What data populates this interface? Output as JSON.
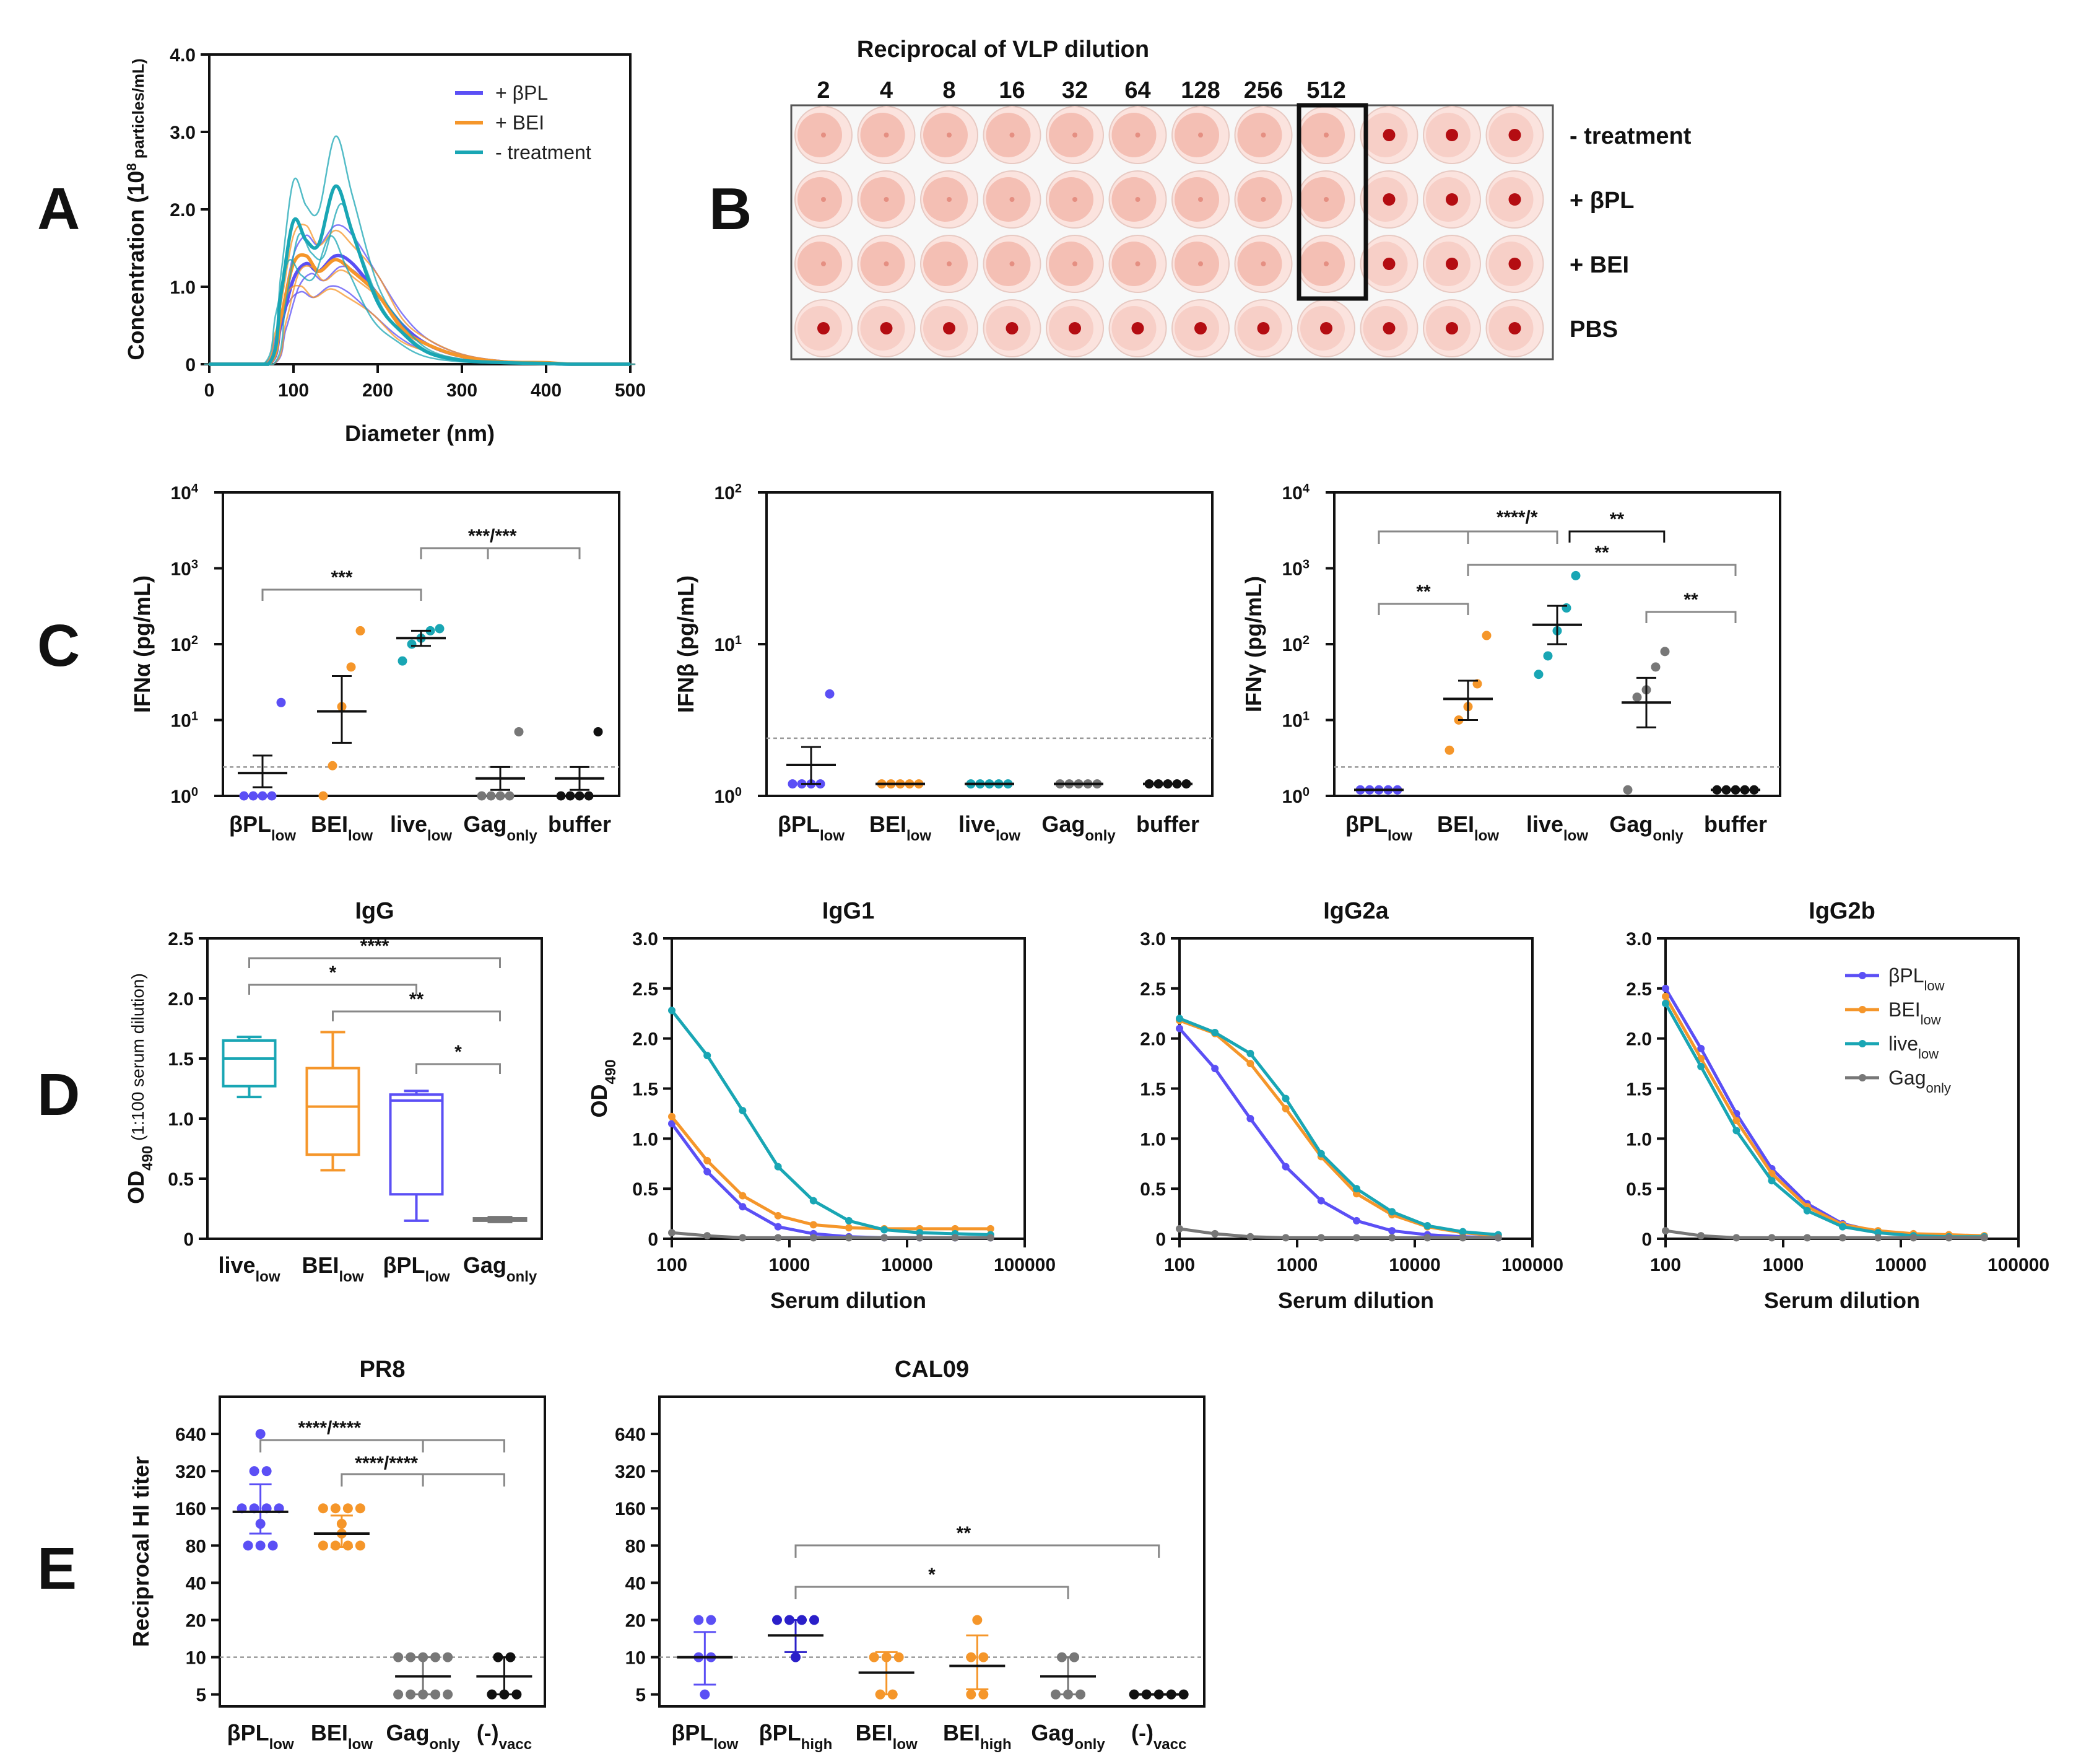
{
  "colors": {
    "bpl": "#5b4ff5",
    "bei": "#f5962a",
    "live": "#19a6b4",
    "gag": "#777777",
    "black": "#111111",
    "teal_text": "#1aa3b3",
    "blue_text": "#4f8ef7",
    "orange_text": "#f5a03a"
  },
  "panels": {
    "A": "A",
    "B": "B",
    "C": "C",
    "D": "D",
    "E": "E"
  },
  "panelA": {
    "ylabel": "Concentration (10",
    "ylabel_sup": "8",
    "ylabel_units": " particles/mL)",
    "xlabel": "Diameter (nm)",
    "xticks": [
      "0",
      "100",
      "200",
      "300",
      "400",
      "500"
    ],
    "yticks": [
      "0",
      "1.0",
      "2.0",
      "3.0",
      "4.0"
    ],
    "legend": [
      "+ βPL",
      "+ BEI",
      "- treatment"
    ]
  },
  "panelB": {
    "title": "Reciprocal of VLP dilution",
    "dilutions": [
      "2",
      "4",
      "8",
      "16",
      "32",
      "64",
      "128",
      "256",
      "512"
    ],
    "row_labels": [
      "- treatment",
      "+ βPL",
      "+ BEI",
      "PBS"
    ],
    "columns": 12,
    "hemagglutination_endpoint_col": 9
  },
  "panelC": {
    "ylabels": [
      "IFNα (pg/mL)",
      "IFNβ (pg/mL)",
      "IFNγ (pg/mL)"
    ],
    "cats_main": [
      "βPL",
      "BEI",
      "live",
      "Gag",
      "buffer"
    ],
    "cats_sub": [
      "low",
      "low",
      "low",
      "only",
      ""
    ],
    "c1_ticks": [
      "10",
      "10",
      "10",
      "10",
      "10"
    ],
    "c1_exp": [
      "0",
      "1",
      "2",
      "3",
      "4"
    ],
    "c2_ticks": [
      "10",
      "10",
      "10"
    ],
    "c2_exp": [
      "0",
      "1",
      "2"
    ],
    "sig_c1": [
      "***",
      "***/***"
    ],
    "sig_c3": [
      "****/*",
      "**",
      "**",
      "**",
      "**"
    ]
  },
  "panelD": {
    "titles": [
      "IgG",
      "IgG1",
      "IgG2a",
      "IgG2b"
    ],
    "ylabel_main": "OD",
    "ylabel_sub": "490",
    "ylabel_tail": " (1:100 serum dilution)",
    "box_cats_main": [
      "live",
      "BEI",
      "βPL",
      "Gag"
    ],
    "box_cats_sub": [
      "low",
      "low",
      "low",
      "only"
    ],
    "box_yticks": [
      "0",
      "0.5",
      "1.0",
      "1.5",
      "2.0",
      "2.5"
    ],
    "line_yticks": [
      "0",
      "0.5",
      "1.0",
      "1.5",
      "2.0",
      "2.5",
      "3.0"
    ],
    "line_xticks": [
      "100",
      "1000",
      "10000",
      "100000"
    ],
    "xlabel": "Serum dilution",
    "sig": [
      "****",
      "*",
      "**",
      "*"
    ],
    "legend_main": [
      "βPL",
      "BEI",
      "live",
      "Gag"
    ],
    "legend_sub": [
      "low",
      "low",
      "low",
      "only"
    ]
  },
  "panelE": {
    "titles": [
      "PR8",
      "CAL09"
    ],
    "ylabel": "Reciprocal HI titer",
    "yticks": [
      "5",
      "10",
      "20",
      "40",
      "80",
      "160",
      "320",
      "640"
    ],
    "pr8_cats_main": [
      "βPL",
      "BEI",
      "Gag",
      "(-)"
    ],
    "pr8_cats_sub": [
      "low",
      "low",
      "only",
      "vacc"
    ],
    "cal_cats_main": [
      "βPL",
      "βPL",
      "BEI",
      "BEI",
      "Gag",
      "(-)"
    ],
    "cal_cats_sub": [
      "low",
      "high",
      "low",
      "high",
      "only",
      "vacc"
    ],
    "sig_pr8": [
      "****/****",
      "****/****"
    ],
    "sig_cal": [
      "**",
      "*"
    ]
  },
  "chart_data": [
    {
      "id": "A",
      "type": "line",
      "title": "",
      "xlabel": "Diameter (nm)",
      "ylabel": "Concentration (10^8 particles/mL)",
      "xlim": [
        0,
        500
      ],
      "ylim": [
        0,
        4
      ],
      "series": [
        {
          "name": "+ βPL",
          "color": "#5b4ff5",
          "x": [
            0,
            70,
            85,
            100,
            115,
            130,
            150,
            170,
            200,
            230,
            260,
            300,
            350,
            400,
            430,
            500
          ],
          "y": [
            0,
            0,
            0.5,
            1.1,
            1.3,
            1.2,
            1.4,
            1.3,
            0.9,
            0.5,
            0.25,
            0.1,
            0.03,
            0.01,
            0,
            0
          ]
        },
        {
          "name": "+ BEI",
          "color": "#f5962a",
          "x": [
            0,
            70,
            85,
            100,
            115,
            130,
            150,
            170,
            200,
            230,
            260,
            300,
            350,
            400,
            430,
            500
          ],
          "y": [
            0,
            0,
            0.6,
            1.3,
            1.4,
            1.2,
            1.35,
            1.2,
            0.9,
            0.45,
            0.25,
            0.1,
            0.03,
            0.02,
            0,
            0
          ]
        },
        {
          "name": "- treatment",
          "color": "#19a6b4",
          "x": [
            0,
            70,
            85,
            100,
            115,
            130,
            150,
            170,
            200,
            230,
            260,
            300,
            350,
            400,
            430,
            500
          ],
          "y": [
            0,
            0,
            0.9,
            1.85,
            1.6,
            1.55,
            2.3,
            1.7,
            0.8,
            0.4,
            0.15,
            0.05,
            0.02,
            0.01,
            0,
            0
          ]
        }
      ]
    },
    {
      "id": "C1",
      "type": "scatter",
      "ylabel": "IFNα (pg/mL)",
      "yscale": "log",
      "ylim": [
        1,
        10000
      ],
      "lod": 2.4,
      "categories": [
        "βPLlow",
        "BEIlow",
        "livelow",
        "Gagonly",
        "buffer"
      ],
      "points": [
        [
          1.0,
          1.0,
          1.0,
          1.0,
          17
        ],
        [
          1.0,
          2.5,
          15,
          50,
          150
        ],
        [
          60,
          100,
          120,
          150,
          160
        ],
        [
          1.0,
          1.0,
          1.0,
          1.0,
          7
        ],
        [
          1.0,
          1.0,
          1.0,
          1.0,
          7
        ]
      ],
      "mean": [
        2.0,
        13,
        120,
        1.7,
        1.7
      ],
      "err_low": [
        1.3,
        5,
        95,
        1.2,
        1.2
      ],
      "err_high": [
        3.4,
        38,
        150,
        2.4,
        2.4
      ]
    },
    {
      "id": "C2",
      "type": "scatter",
      "ylabel": "IFNβ (pg/mL)",
      "yscale": "log",
      "ylim": [
        1,
        100
      ],
      "lod": 2.4,
      "categories": [
        "βPLlow",
        "BEIlow",
        "livelow",
        "Gagonly",
        "buffer"
      ],
      "points": [
        [
          1.2,
          1.2,
          1.2,
          1.2,
          4.7
        ],
        [
          1.2,
          1.2,
          1.2,
          1.2,
          1.2
        ],
        [
          1.2,
          1.2,
          1.2,
          1.2,
          1.2
        ],
        [
          1.2,
          1.2,
          1.2,
          1.2,
          1.2
        ],
        [
          1.2,
          1.2,
          1.2,
          1.2,
          1.2
        ]
      ],
      "mean": [
        1.6,
        1.2,
        1.2,
        1.2,
        1.2
      ],
      "err_low": [
        1.2,
        1.2,
        1.2,
        1.2,
        1.2
      ],
      "err_high": [
        2.1,
        1.2,
        1.2,
        1.2,
        1.2
      ]
    },
    {
      "id": "C3",
      "type": "scatter",
      "ylabel": "IFNγ (pg/mL)",
      "yscale": "log",
      "ylim": [
        1,
        10000
      ],
      "lod": 2.4,
      "categories": [
        "βPLlow",
        "BEIlow",
        "livelow",
        "Gagonly",
        "buffer"
      ],
      "points": [
        [
          1.2,
          1.2,
          1.2,
          1.2,
          1.2
        ],
        [
          4,
          10,
          15,
          30,
          130
        ],
        [
          40,
          70,
          150,
          300,
          800
        ],
        [
          1.2,
          20,
          25,
          50,
          80
        ],
        [
          1.2,
          1.2,
          1.2,
          1.2,
          1.2
        ]
      ],
      "mean": [
        1.2,
        19,
        180,
        17,
        1.2
      ],
      "err_low": [
        1.2,
        10,
        100,
        8,
        1.2
      ],
      "err_high": [
        1.2,
        33,
        320,
        36,
        1.2
      ]
    },
    {
      "id": "D-IgG",
      "type": "box",
      "title": "IgG",
      "ylabel": "OD490 (1:100 serum dilution)",
      "ylim": [
        0,
        2.5
      ],
      "categories": [
        "livelow",
        "BEIlow",
        "βPLlow",
        "Gagonly"
      ],
      "boxes": [
        {
          "min": 1.18,
          "q1": 1.27,
          "median": 1.5,
          "q3": 1.65,
          "max": 1.68
        },
        {
          "min": 0.57,
          "q1": 0.7,
          "median": 1.1,
          "q3": 1.42,
          "max": 1.72
        },
        {
          "min": 0.15,
          "q1": 0.37,
          "median": 1.15,
          "q3": 1.2,
          "max": 1.23
        },
        {
          "min": 0.14,
          "q1": 0.15,
          "median": 0.16,
          "q3": 0.17,
          "max": 0.18
        }
      ]
    },
    {
      "id": "D-IgG1",
      "type": "line",
      "title": "IgG1",
      "xscale": "log",
      "xlabel": "Serum dilution",
      "ylabel": "OD490",
      "xlim": [
        100,
        100000
      ],
      "ylim": [
        0,
        3
      ],
      "x": [
        100,
        200,
        400,
        800,
        1600,
        3200,
        6400,
        12800,
        25600,
        51200
      ],
      "series": [
        {
          "name": "βPLlow",
          "values": [
            1.15,
            0.67,
            0.32,
            0.12,
            0.05,
            0.02,
            0.01,
            0.01,
            0.01,
            0.01
          ]
        },
        {
          "name": "BEIlow",
          "values": [
            1.22,
            0.78,
            0.43,
            0.23,
            0.14,
            0.11,
            0.1,
            0.1,
            0.1,
            0.1
          ]
        },
        {
          "name": "livelow",
          "values": [
            2.28,
            1.83,
            1.28,
            0.72,
            0.38,
            0.18,
            0.09,
            0.06,
            0.05,
            0.04
          ]
        },
        {
          "name": "Gagonly",
          "values": [
            0.06,
            0.03,
            0.01,
            0.01,
            0.01,
            0.01,
            0.01,
            0.01,
            0.01,
            0.01
          ]
        }
      ]
    },
    {
      "id": "D-IgG2a",
      "type": "line",
      "title": "IgG2a",
      "xscale": "log",
      "xlabel": "Serum dilution",
      "ylabel": "",
      "xlim": [
        100,
        100000
      ],
      "ylim": [
        0,
        3
      ],
      "x": [
        100,
        200,
        400,
        800,
        1600,
        3200,
        6400,
        12800,
        25600,
        51200
      ],
      "series": [
        {
          "name": "βPLlow",
          "values": [
            2.1,
            1.7,
            1.2,
            0.72,
            0.38,
            0.18,
            0.08,
            0.04,
            0.02,
            0.01
          ]
        },
        {
          "name": "BEIlow",
          "values": [
            2.18,
            2.05,
            1.75,
            1.3,
            0.82,
            0.45,
            0.24,
            0.12,
            0.06,
            0.03
          ]
        },
        {
          "name": "livelow",
          "values": [
            2.2,
            2.06,
            1.85,
            1.4,
            0.85,
            0.5,
            0.27,
            0.13,
            0.07,
            0.04
          ]
        },
        {
          "name": "Gagonly",
          "values": [
            0.1,
            0.05,
            0.02,
            0.01,
            0.01,
            0.01,
            0.01,
            0.01,
            0.01,
            0.01
          ]
        }
      ]
    },
    {
      "id": "D-IgG2b",
      "type": "line",
      "title": "IgG2b",
      "xscale": "log",
      "xlabel": "Serum dilution",
      "ylabel": "",
      "xlim": [
        100,
        100000
      ],
      "ylim": [
        0,
        3
      ],
      "x": [
        100,
        200,
        400,
        800,
        1600,
        3200,
        6400,
        12800,
        25600,
        51200
      ],
      "series": [
        {
          "name": "βPLlow",
          "values": [
            2.5,
            1.9,
            1.25,
            0.7,
            0.35,
            0.15,
            0.07,
            0.04,
            0.03,
            0.02
          ]
        },
        {
          "name": "BEIlow",
          "values": [
            2.42,
            1.8,
            1.18,
            0.65,
            0.32,
            0.14,
            0.08,
            0.05,
            0.04,
            0.03
          ]
        },
        {
          "name": "livelow",
          "values": [
            2.35,
            1.72,
            1.08,
            0.58,
            0.28,
            0.12,
            0.06,
            0.03,
            0.02,
            0.02
          ]
        },
        {
          "name": "Gagonly",
          "values": [
            0.08,
            0.03,
            0.01,
            0.01,
            0.01,
            0.01,
            0.01,
            0.01,
            0.01,
            0.01
          ]
        }
      ]
    },
    {
      "id": "E-PR8",
      "type": "scatter",
      "title": "PR8",
      "ylabel": "Reciprocal HI titer",
      "yscale": "log2",
      "ylim": [
        4,
        1280
      ],
      "lod": 10,
      "categories": [
        "βPLlow",
        "BEIlow",
        "Gagonly",
        "(-)vacc"
      ],
      "points": [
        [
          80,
          80,
          80,
          120,
          160,
          160,
          160,
          160,
          320,
          320,
          640
        ],
        [
          80,
          80,
          80,
          80,
          100,
          120,
          160,
          160,
          160,
          160
        ],
        [
          5,
          5,
          5,
          5,
          5,
          10,
          10,
          10,
          10,
          10
        ],
        [
          5,
          5,
          5,
          10,
          10
        ]
      ],
      "mean": [
        150,
        100,
        7,
        7
      ],
      "err_low": [
        100,
        78,
        5,
        5
      ],
      "err_high": [
        250,
        140,
        10,
        10
      ]
    },
    {
      "id": "E-CAL09",
      "type": "scatter",
      "title": "CAL09",
      "ylabel": "",
      "yscale": "log2",
      "ylim": [
        4,
        1280
      ],
      "lod": 10,
      "categories": [
        "βPLlow",
        "βPLhigh",
        "BEIlow",
        "BEIhigh",
        "Gagonly",
        "(-)vacc"
      ],
      "points": [
        [
          5,
          10,
          10,
          20,
          20
        ],
        [
          10,
          20,
          20,
          20,
          20
        ],
        [
          5,
          5,
          10,
          10,
          10
        ],
        [
          5,
          5,
          10,
          10,
          20
        ],
        [
          5,
          5,
          5,
          10,
          10
        ],
        [
          5,
          5,
          5,
          5,
          5
        ]
      ],
      "mean": [
        10,
        15,
        7.5,
        8.5,
        7,
        5
      ],
      "err_low": [
        6,
        11,
        5,
        5.5,
        5,
        5
      ],
      "err_high": [
        16,
        20,
        11,
        15,
        10,
        5
      ]
    }
  ]
}
